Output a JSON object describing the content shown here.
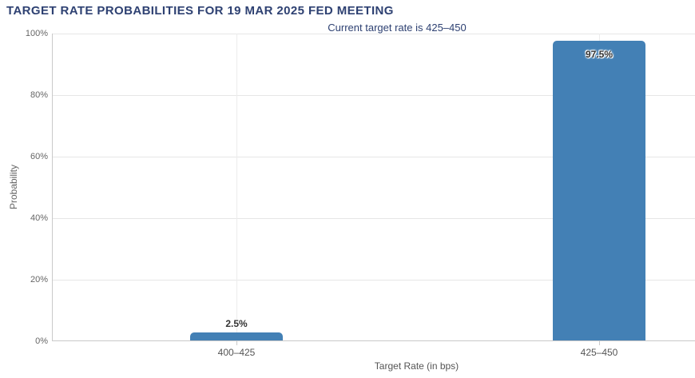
{
  "chart_data": {
    "type": "bar",
    "title": "TARGET RATE PROBABILITIES FOR 19 MAR 2025 FED MEETING",
    "subtitle": "Current target rate is 425–450",
    "xlabel": "Target Rate (in bps)",
    "ylabel": "Probability",
    "categories": [
      "400–425",
      "425–450"
    ],
    "values": [
      2.5,
      97.5
    ],
    "value_labels": [
      "2.5%",
      "97.5%"
    ],
    "ylim": [
      0,
      100
    ],
    "ytick_labels": [
      "0%",
      "20%",
      "40%",
      "60%",
      "80%",
      "100%"
    ],
    "grid": true,
    "legend": "none",
    "colors": {
      "bar": "#4380b5",
      "title": "#2e4172",
      "axis-text": "#666666",
      "axis-text-dark": "#555555",
      "grid": "#e6e6e6",
      "grid-v": "#ececec",
      "axis-line": "#c9c9c9",
      "data-label": "#333333"
    }
  }
}
